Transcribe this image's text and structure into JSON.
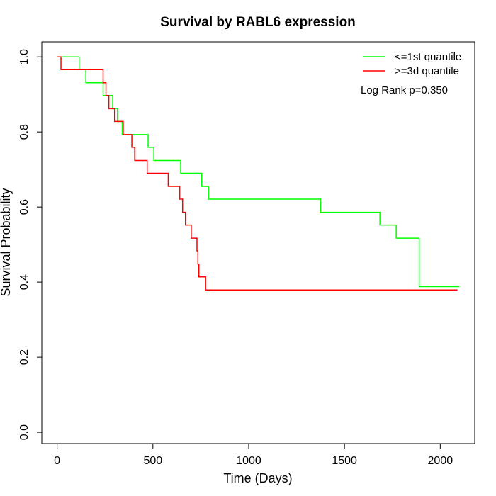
{
  "chart_data": {
    "type": "line",
    "title": "Survival by RABL6 expression",
    "xlabel": "Time (Days)",
    "ylabel": "Survival Probability",
    "xlim": [
      -80,
      2180
    ],
    "ylim": [
      -0.03,
      1.04
    ],
    "x_ticks": [
      0,
      500,
      1000,
      1500,
      2000
    ],
    "y_ticks": [
      0.0,
      0.2,
      0.4,
      0.6,
      0.8,
      1.0
    ],
    "x_tick_labels": [
      "0",
      "500",
      "1000",
      "1500",
      "2000"
    ],
    "y_tick_labels": [
      "0.0",
      "0.2",
      "0.4",
      "0.6",
      "0.8",
      "1.0"
    ],
    "grid": false,
    "legend_position": "top-right",
    "annotation": "Log Rank p=0.350",
    "series": [
      {
        "name": "<=1st quantile",
        "color": "#00ff00",
        "step": true,
        "points": [
          [
            0,
            1.0
          ],
          [
            115,
            0.966
          ],
          [
            150,
            0.931
          ],
          [
            240,
            0.897
          ],
          [
            290,
            0.862
          ],
          [
            315,
            0.828
          ],
          [
            340,
            0.793
          ],
          [
            475,
            0.759
          ],
          [
            505,
            0.724
          ],
          [
            645,
            0.69
          ],
          [
            755,
            0.655
          ],
          [
            790,
            0.621
          ],
          [
            1375,
            0.586
          ],
          [
            1685,
            0.552
          ],
          [
            1770,
            0.517
          ],
          [
            1890,
            0.388
          ],
          [
            2100,
            0.388
          ]
        ]
      },
      {
        "name": ">=3d quantile",
        "color": "#ff0000",
        "step": true,
        "points": [
          [
            0,
            1.0
          ],
          [
            20,
            0.966
          ],
          [
            240,
            0.931
          ],
          [
            255,
            0.897
          ],
          [
            270,
            0.862
          ],
          [
            300,
            0.828
          ],
          [
            345,
            0.793
          ],
          [
            390,
            0.759
          ],
          [
            405,
            0.724
          ],
          [
            470,
            0.69
          ],
          [
            580,
            0.655
          ],
          [
            640,
            0.621
          ],
          [
            655,
            0.586
          ],
          [
            670,
            0.552
          ],
          [
            700,
            0.517
          ],
          [
            730,
            0.483
          ],
          [
            735,
            0.448
          ],
          [
            740,
            0.414
          ],
          [
            775,
            0.379
          ],
          [
            2090,
            0.379
          ]
        ]
      }
    ]
  }
}
